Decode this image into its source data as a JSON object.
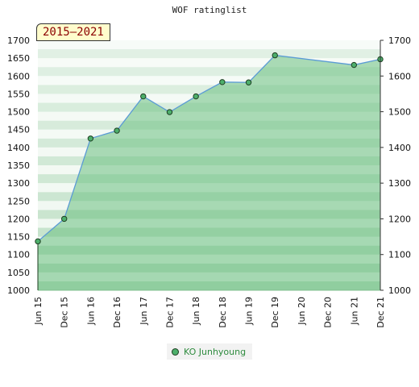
{
  "chart_data": {
    "type": "area",
    "title": "WOF ratinglist",
    "period_label": "2015–2021",
    "xlabel": "",
    "ylabel": "",
    "ylim": [
      1000,
      1700
    ],
    "y_ticks": [
      1000,
      1050,
      1100,
      1150,
      1200,
      1250,
      1300,
      1350,
      1400,
      1450,
      1500,
      1550,
      1600,
      1650,
      1700
    ],
    "y_ticks_right": [
      1000,
      1100,
      1200,
      1300,
      1400,
      1500,
      1600,
      1700
    ],
    "x_ticks": [
      "Jun 15",
      "Dec 15",
      "Jun 16",
      "Dec 16",
      "Jun 17",
      "Dec 17",
      "Jun 18",
      "Dec 18",
      "Jun 19",
      "Dec 19",
      "Jun 20",
      "Dec 20",
      "Jun 21",
      "Dec 21"
    ],
    "series": [
      {
        "name": "KO Junhyoung",
        "points": [
          {
            "x": "Jun 15",
            "y": 1137
          },
          {
            "x": "Dec 15",
            "y": 1200
          },
          {
            "x": "Jun 16",
            "y": 1425
          },
          {
            "x": "Dec 16",
            "y": 1447
          },
          {
            "x": "Jun 17",
            "y": 1543
          },
          {
            "x": "Dec 17",
            "y": 1499
          },
          {
            "x": "Jun 18",
            "y": 1543
          },
          {
            "x": "Dec 18",
            "y": 1583
          },
          {
            "x": "Jun 19",
            "y": 1582
          },
          {
            "x": "Dec 19",
            "y": 1658
          },
          {
            "x": "Jun 21",
            "y": 1631
          },
          {
            "x": "Dec 21",
            "y": 1647
          }
        ]
      }
    ],
    "grid": true,
    "legend_position": "bottom-center",
    "colors": {
      "area_fill": "#6abf80",
      "line": "#5b9bd5",
      "marker": "#4daf6b",
      "marker_edge": "#1e3e22",
      "band_dark": "#bfe0c6",
      "band_light": "#eef7ef",
      "period_badge_bg": "#fffccc",
      "period_badge_text": "#8b0000",
      "legend_text": "#2e8b3e"
    }
  }
}
